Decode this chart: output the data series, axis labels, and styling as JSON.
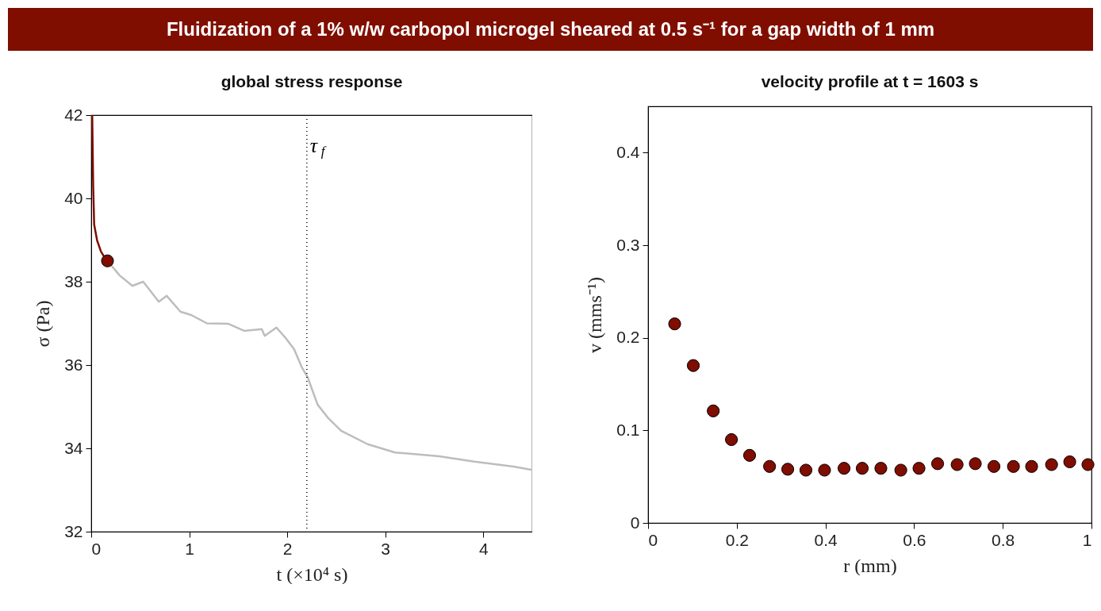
{
  "chart_data": [
    {
      "type": "line",
      "title": "Fluidization of a 1% w/w carbopol microgel sheared at 0.5 s⁻¹ for a gap width of 1 mm",
      "subtitle": "global stress response",
      "xlabel": "t (×10⁴ s)",
      "ylabel": "σ (Pa)",
      "xlim": [
        0,
        4.5
      ],
      "xticks": [
        0,
        1,
        2,
        3,
        4
      ],
      "ylim": [
        32,
        42
      ],
      "yticks": [
        32,
        34,
        36,
        38,
        40,
        42
      ],
      "line_style": "solid",
      "series": [
        {
          "color": "#bdbdbd",
          "x": [
            0.166,
            0.29,
            0.42,
            0.53,
            0.69,
            0.77,
            0.91,
            1.02,
            1.18,
            1.4,
            1.56,
            1.74,
            1.77,
            1.89,
            1.99,
            2.07,
            2.15,
            2.21,
            2.26,
            2.31,
            2.42,
            2.55,
            2.82,
            3.1,
            3.55,
            3.91,
            4.31,
            4.5
          ],
          "values": [
            38.5,
            38.15,
            37.9,
            38.0,
            37.52,
            37.66,
            37.28,
            37.2,
            37.0,
            36.99,
            36.82,
            36.86,
            36.7,
            36.9,
            36.63,
            36.38,
            35.94,
            35.7,
            35.37,
            35.05,
            34.72,
            34.42,
            34.1,
            33.9,
            33.81,
            33.68,
            33.56,
            33.48
          ]
        },
        {
          "color": "#7f0d00",
          "x": [
            0.01,
            0.02,
            0.03,
            0.06,
            0.1,
            0.15,
            0.166
          ],
          "values": [
            42,
            40.3,
            39.37,
            38.99,
            38.72,
            38.53,
            38.5
          ]
        },
        {
          "type": "scatter",
          "marker": "circle",
          "color": "#7f0d00",
          "x": [
            0.166
          ],
          "values": [
            38.5
          ]
        }
      ],
      "ref_lines": [
        {
          "axis": "x",
          "value": 2.2,
          "label": "τ$_{f}$",
          "line_style": "dotted",
          "color": "#000000"
        }
      ]
    },
    {
      "type": "scatter",
      "title": "velocity profile at t = 1603 s",
      "xlabel": "r (mm)",
      "ylabel": "v (mms⁻¹)",
      "xlim": [
        0,
        1
      ],
      "xticks": [
        0,
        0.2,
        0.4,
        0.6,
        0.8,
        1
      ],
      "ylim": [
        0,
        0.45
      ],
      "yticks": [
        0,
        0.1,
        0.2,
        0.3,
        0.4
      ],
      "marker": "circle",
      "series": [
        {
          "color": "#7f0d00",
          "x": [
            0.06,
            0.102,
            0.147,
            0.188,
            0.229,
            0.274,
            0.315,
            0.356,
            0.398,
            0.442,
            0.483,
            0.525,
            0.57,
            0.611,
            0.653,
            0.697,
            0.738,
            0.78,
            0.824,
            0.865,
            0.91,
            0.951,
            0.992
          ],
          "values": [
            0.215,
            0.17,
            0.121,
            0.09,
            0.073,
            0.061,
            0.058,
            0.057,
            0.057,
            0.059,
            0.059,
            0.059,
            0.057,
            0.059,
            0.064,
            0.063,
            0.064,
            0.061,
            0.061,
            0.061,
            0.063,
            0.066,
            0.063
          ]
        }
      ]
    }
  ]
}
